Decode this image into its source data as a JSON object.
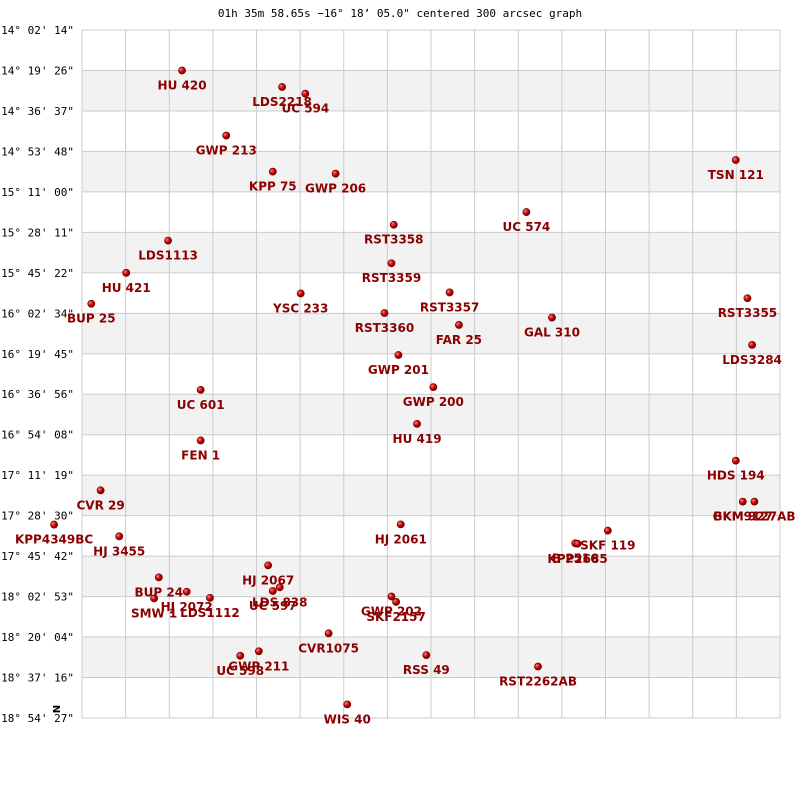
{
  "chart_data": {
    "type": "scatter",
    "title": "01h 35m 58.65s −16° 18’ 05.0\" centered 300 arcsec graph",
    "xlabel": "",
    "ylabel": "",
    "north_label": "N",
    "x_unit": "arcsec offset (east positive, left)",
    "xlim": [
      -150,
      150
    ],
    "y_ticks": [
      "-14° 02' 14\"",
      "-14° 19' 26\"",
      "-14° 36' 37\"",
      "-14° 53' 48\"",
      "-15° 11' 00\"",
      "-15° 28' 11\"",
      "-15° 45' 22\"",
      "-16° 02' 34\"",
      "-16° 19' 45\"",
      "-16° 36' 56\"",
      "-16° 54' 08\"",
      "-17° 11' 19\"",
      "-17° 28' 30\"",
      "-17° 45' 42\"",
      "-18° 02' 53\"",
      "-18° 20' 04\"",
      "-18° 37' 16\"",
      "-18° 54' 27\""
    ],
    "y_tick_values": [
      -14.0372,
      -14.3239,
      -14.6103,
      -14.8967,
      -15.1833,
      -15.4697,
      -15.7561,
      -16.0428,
      -16.3292,
      -16.6156,
      -16.9022,
      -17.1886,
      -17.475,
      -17.7617,
      -18.0481,
      -18.3344,
      -18.6211,
      -18.9075
    ],
    "ylim": [
      -18.9075,
      -14.0372
    ],
    "grid": true,
    "stars": [
      {
        "name": "HU  420",
        "x": 107,
        "y": -14.3239
      },
      {
        "name": "LDS2218",
        "x": 64,
        "y": -14.4408
      },
      {
        "name": "UC  594",
        "x": 54,
        "y": -14.4878
      },
      {
        "name": "GWP 213",
        "x": 88,
        "y": -14.7844
      },
      {
        "name": "KPP  75",
        "x": 68,
        "y": -15.04
      },
      {
        "name": "GWP 206",
        "x": 41,
        "y": -15.0542
      },
      {
        "name": "TSN 121",
        "x": -131,
        "y": -14.9572
      },
      {
        "name": "UC  574",
        "x": -41,
        "y": -15.3261
      },
      {
        "name": "RST3358",
        "x": 16,
        "y": -15.4158
      },
      {
        "name": "LDS1113",
        "x": 113,
        "y": -15.5283
      },
      {
        "name": "HU  421",
        "x": 131,
        "y": -15.7561
      },
      {
        "name": "RST3359",
        "x": 17,
        "y": -15.6881
      },
      {
        "name": "BUP  25",
        "x": 146,
        "y": -15.975
      },
      {
        "name": "YSC 233",
        "x": 56,
        "y": -15.9022
      },
      {
        "name": "RST3357",
        "x": -8,
        "y": -15.895
      },
      {
        "name": "RST3355",
        "x": -136,
        "y": -15.9361
      },
      {
        "name": "RST3360",
        "x": 20,
        "y": -16.0406
      },
      {
        "name": "FAR  25",
        "x": -12,
        "y": -16.125
      },
      {
        "name": "GAL 310",
        "x": -52,
        "y": -16.0728
      },
      {
        "name": "LDS3284",
        "x": -138,
        "y": -16.2664
      },
      {
        "name": "GWP 201",
        "x": 14,
        "y": -16.3378
      },
      {
        "name": "GWP 200",
        "x": -1,
        "y": -16.5653
      },
      {
        "name": "UC  601",
        "x": 99,
        "y": -16.5847
      },
      {
        "name": "HU  419",
        "x": 6,
        "y": -16.8253
      },
      {
        "name": "FEN   1",
        "x": 99,
        "y": -16.9428
      },
      {
        "name": "HDS 194",
        "x": -131,
        "y": -17.0858
      },
      {
        "name": "CVR  29",
        "x": 142,
        "y": -17.2958
      },
      {
        "name": "GKM 927",
        "x": -134,
        "y": -17.3756
      },
      {
        "name": "BKM9127AB",
        "x": -139,
        "y": -17.3756
      },
      {
        "name": "KPP4349BC",
        "x": 162,
        "y": -17.5383
      },
      {
        "name": "HJ 3455",
        "x": 134,
        "y": -17.6214
      },
      {
        "name": "HJ 2061",
        "x": 13,
        "y": -17.5367
      },
      {
        "name": "SKF 119",
        "x": -76,
        "y": -17.5811
      },
      {
        "name": "B  2516",
        "x": -62,
        "y": -17.6708
      },
      {
        "name": "KPP2685",
        "x": -63,
        "y": -17.6742
      },
      {
        "name": "HJ 2067",
        "x": 70,
        "y": -17.8269
      },
      {
        "name": "BUP  24",
        "x": 117,
        "y": -17.9122
      },
      {
        "name": "HJ 2072",
        "x": 105,
        "y": -18.0139
      },
      {
        "name": "LDS 838",
        "x": 65,
        "y": -17.9822
      },
      {
        "name": "UC  597",
        "x": 68,
        "y": -18.0086
      },
      {
        "name": "SMW   1",
        "x": 119,
        "y": -18.0608
      },
      {
        "name": "LDS1112",
        "x": 95,
        "y": -18.0569
      },
      {
        "name": "GWP 202",
        "x": 17,
        "y": -18.0475
      },
      {
        "name": "SKF2157",
        "x": 15,
        "y": -18.0858
      },
      {
        "name": "CVR1075",
        "x": 44,
        "y": -18.3081
      },
      {
        "name": "UC  598",
        "x": 82,
        "y": -18.4672
      },
      {
        "name": "GWP 211",
        "x": 74,
        "y": -18.435
      },
      {
        "name": "RSS  49",
        "x": 2,
        "y": -18.4622
      },
      {
        "name": "RST2262AB",
        "x": -46,
        "y": -18.5433
      },
      {
        "name": "WIS  40",
        "x": 36,
        "y": -18.8108
      }
    ],
    "label_positions": [
      "below",
      "below",
      "below",
      "below",
      "below",
      "below",
      "below",
      "below",
      "below",
      "below",
      "below",
      "below",
      "below",
      "below",
      "below",
      "below",
      "below",
      "below",
      "below",
      "below",
      "below",
      "below",
      "below",
      "below",
      "below",
      "below",
      "below",
      "below",
      "below",
      "below",
      "below",
      "below",
      "below",
      "below",
      "below",
      "below",
      "below",
      "below",
      "below",
      "below",
      "below",
      "below",
      "below",
      "below",
      "below",
      "below",
      "below",
      "below",
      "below",
      "below"
    ]
  },
  "colors": {
    "background": "#ffffff",
    "band": "#f2f2f2",
    "grid": "#cccccc",
    "star_fill": "#cc0000",
    "star_highlight": "#ff8080",
    "label": "#8b0000"
  }
}
